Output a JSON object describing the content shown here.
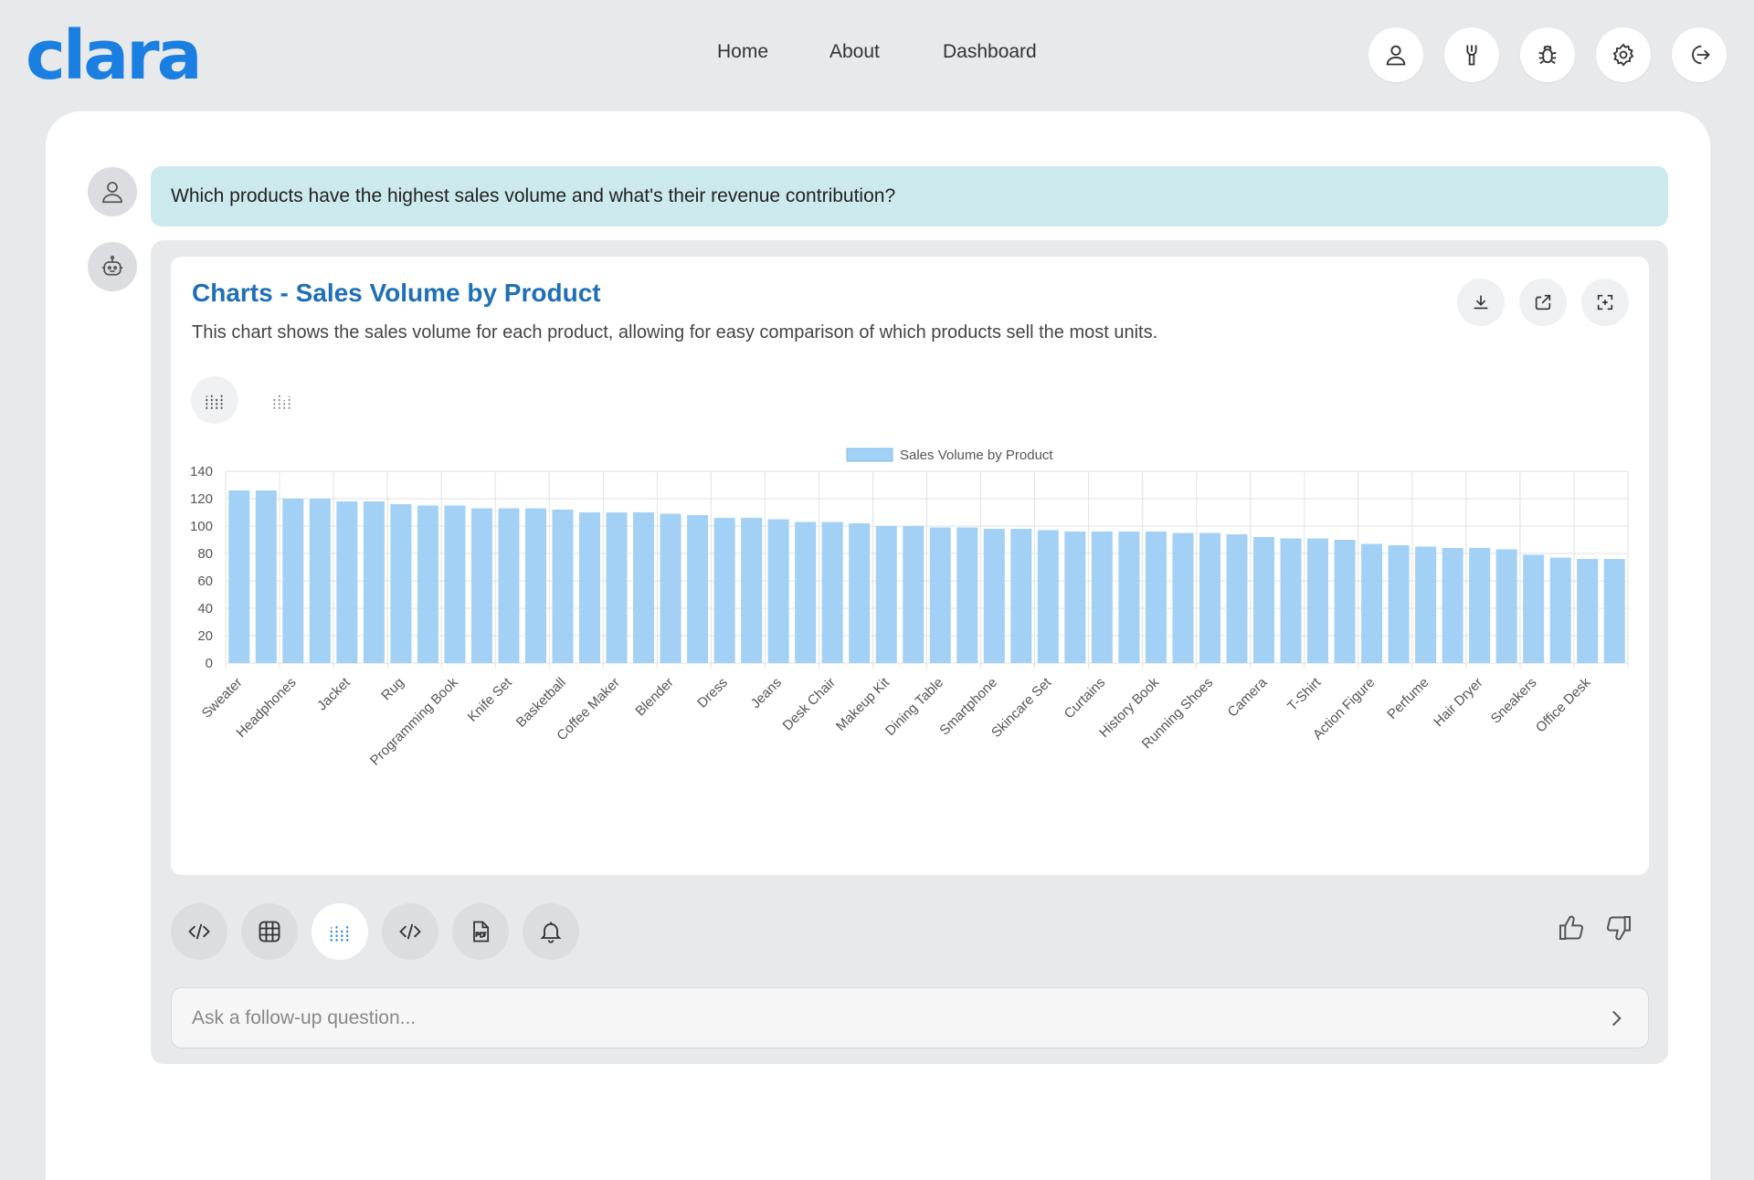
{
  "app": {
    "logo": "clara"
  },
  "nav": {
    "items": [
      {
        "label": "Home"
      },
      {
        "label": "About"
      },
      {
        "label": "Dashboard"
      }
    ]
  },
  "top_icons": [
    "user-icon",
    "tools-icon",
    "bug-icon",
    "gear-icon",
    "logout-icon"
  ],
  "conversation": {
    "question": "Which products have the highest sales volume and what's their revenue contribution?",
    "answer": {
      "title": "Charts - Sales Volume by Product",
      "description": "This chart shows the sales volume for each product, allowing for easy comparison of which products sell the most units.",
      "card_actions": [
        "download-icon",
        "share-icon",
        "fullscreen-icon"
      ],
      "view_toggle": [
        "bar-chart-icon",
        "bar-chart-alt-icon"
      ]
    }
  },
  "toolbar": {
    "buttons": [
      "code-icon",
      "table-icon",
      "chart-icon",
      "code-alt-icon",
      "pdf-icon",
      "bell-icon"
    ],
    "active": "chart-icon"
  },
  "feedback": [
    "thumbs-up-icon",
    "thumbs-down-icon"
  ],
  "followup": {
    "placeholder": "Ask a follow-up question..."
  },
  "colors": {
    "brand": "#1a7fe0",
    "title": "#1e6fb8",
    "bar": "#a3d1f5",
    "question_bg": "#cce9ee"
  },
  "chart_data": {
    "type": "bar",
    "legend": "Sales Volume by Product",
    "legend_position": "top-center",
    "grid": true,
    "ylim": [
      0,
      140
    ],
    "yticks": [
      0,
      20,
      40,
      60,
      80,
      100,
      120,
      140
    ],
    "categories": [
      "Sweater",
      "",
      "Headphones",
      "",
      "Jacket",
      "",
      "Rug",
      "",
      "Programming Book",
      "",
      "Knife Set",
      "",
      "Basketball",
      "",
      "Coffee Maker",
      "",
      "Blender",
      "",
      "Dress",
      "",
      "Jeans",
      "",
      "Desk Chair",
      "",
      "Makeup Kit",
      "",
      "Dining Table",
      "",
      "Smartphone",
      "",
      "Skincare Set",
      "",
      "Curtains",
      "",
      "History Book",
      "",
      "Running Shoes",
      "",
      "Camera",
      "",
      "T-Shirt",
      "",
      "Action Figure",
      "",
      "Perfume",
      "",
      "Hair Dryer",
      "",
      "Sneakers",
      "",
      "Office Desk",
      ""
    ],
    "values": [
      126,
      126,
      120,
      120,
      118,
      118,
      116,
      115,
      115,
      113,
      113,
      113,
      112,
      110,
      110,
      110,
      109,
      108,
      106,
      106,
      105,
      103,
      103,
      102,
      100,
      100,
      99,
      99,
      98,
      98,
      97,
      96,
      96,
      96,
      96,
      95,
      95,
      94,
      92,
      91,
      91,
      90,
      87,
      86,
      85,
      84,
      84,
      83,
      79,
      77,
      76,
      76
    ]
  }
}
